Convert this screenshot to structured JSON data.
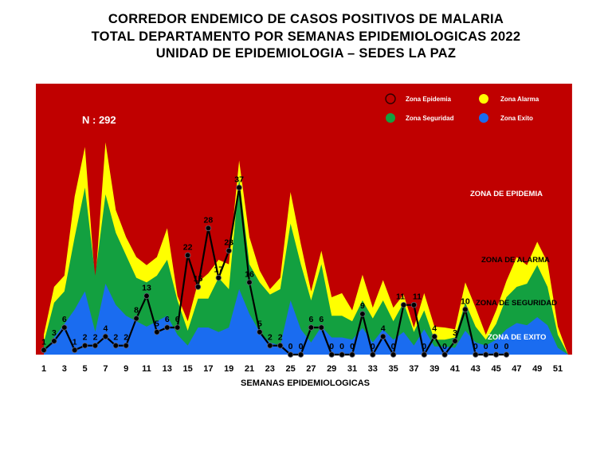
{
  "chart_data": {
    "type": "area",
    "title_lines": [
      "CORREDOR ENDEMICO DE CASOS POSITIVOS DE MALARIA",
      "TOTAL DEPARTAMENTO  POR SEMANAS EPIDEMIOLOGICAS  2022",
      "UNIDAD DE EPIDEMIOLOGIA – SEDES LA PAZ"
    ],
    "xlabel": "SEMANAS EPIDEMIOLOGICAS",
    "ylabel": "",
    "ylim": [
      0,
      60
    ],
    "grid": false,
    "legend_position": "top-right",
    "n_label": "N : 292",
    "x_ticks": [
      1,
      3,
      5,
      7,
      9,
      11,
      13,
      15,
      17,
      19,
      21,
      23,
      25,
      27,
      29,
      31,
      33,
      35,
      37,
      39,
      41,
      43,
      45,
      47,
      49,
      51
    ],
    "weeks": [
      1,
      2,
      3,
      4,
      5,
      6,
      7,
      8,
      9,
      10,
      11,
      12,
      13,
      14,
      15,
      16,
      17,
      18,
      19,
      20,
      21,
      22,
      23,
      24,
      25,
      26,
      27,
      28,
      29,
      30,
      31,
      32,
      33,
      34,
      35,
      36,
      37,
      38,
      39,
      40,
      41,
      42,
      43,
      44,
      45,
      46,
      47,
      48,
      49,
      50,
      51,
      52
    ],
    "zones": [
      {
        "name": "Zona Exito",
        "label": "ZONA DE  EXITO",
        "color": "#1a6cf0",
        "values": [
          0.5,
          3.8,
          6.8,
          10,
          14,
          5,
          15.7,
          11,
          8.6,
          7.4,
          6.2,
          7.4,
          8.6,
          4.4,
          2,
          6,
          6,
          5,
          6,
          14.5,
          9,
          5,
          2.7,
          2,
          12,
          5.6,
          2.7,
          6.2,
          3.8,
          3.8,
          3.3,
          5.9,
          2.7,
          5.6,
          3.3,
          5,
          2,
          5.6,
          1.8,
          1.8,
          1.5,
          5.3,
          2.7,
          2,
          3.3,
          5.6,
          7,
          6.5,
          8.3,
          6.5,
          1.5,
          0
        ]
      },
      {
        "name": "Zona Seguridad",
        "label": "ZONA DE  SEGURIDAD",
        "color": "#13a040",
        "values": [
          2.7,
          11.5,
          14,
          26,
          37,
          17.5,
          35.5,
          27,
          22,
          17,
          16,
          17.5,
          21,
          12,
          5.3,
          12.4,
          12.4,
          17,
          14.5,
          39,
          20,
          16,
          13.3,
          14.5,
          29,
          20,
          12,
          20,
          8.6,
          8.6,
          7.4,
          12,
          8,
          12,
          7.4,
          11.5,
          5,
          9.8,
          3.3,
          3.3,
          3.8,
          11.5,
          6.2,
          3.3,
          6.8,
          12.7,
          15,
          15.7,
          19.8,
          15,
          4.4,
          0
        ]
      },
      {
        "name": "Zona Alarma",
        "label": "ZONA DE ALARMA",
        "color": "#ffff00",
        "values": [
          4.4,
          15,
          17.5,
          35,
          46,
          15.7,
          47,
          32,
          26,
          21.6,
          19.8,
          21.6,
          28,
          13,
          7.4,
          16,
          18,
          21,
          20,
          43,
          26,
          18.6,
          14.5,
          17,
          36,
          24.5,
          14,
          23,
          12.7,
          13.6,
          9.8,
          17.7,
          10.4,
          16.5,
          10.4,
          13.3,
          6,
          13.6,
          6.2,
          6,
          5.6,
          16,
          10.4,
          4.4,
          9.8,
          16.3,
          21.6,
          19.8,
          25,
          20.4,
          6.2,
          0
        ]
      },
      {
        "name": "Zona Epidemia",
        "label": "ZONA DE EPIDEMIA",
        "color": "#c00000"
      }
    ],
    "cases": {
      "weeks": [
        1,
        2,
        3,
        4,
        5,
        6,
        7,
        8,
        9,
        10,
        11,
        12,
        13,
        14,
        15,
        16,
        17,
        18,
        19,
        20,
        21,
        22,
        23,
        24,
        25,
        26,
        27,
        28,
        29,
        30,
        31,
        32,
        33,
        34,
        35,
        36,
        37,
        38,
        39,
        40,
        41,
        42,
        43,
        44,
        45,
        46
      ],
      "values": [
        1,
        3,
        6,
        1,
        2,
        2,
        4,
        2,
        2,
        8,
        13,
        5,
        6,
        6,
        22,
        15,
        28,
        17,
        23,
        37,
        16,
        5,
        2,
        2,
        0,
        0,
        6,
        6,
        0,
        0,
        0,
        9,
        0,
        4,
        0,
        11,
        11,
        0,
        4,
        0,
        3,
        10,
        0,
        0,
        0,
        0
      ],
      "color": "#000000"
    }
  }
}
